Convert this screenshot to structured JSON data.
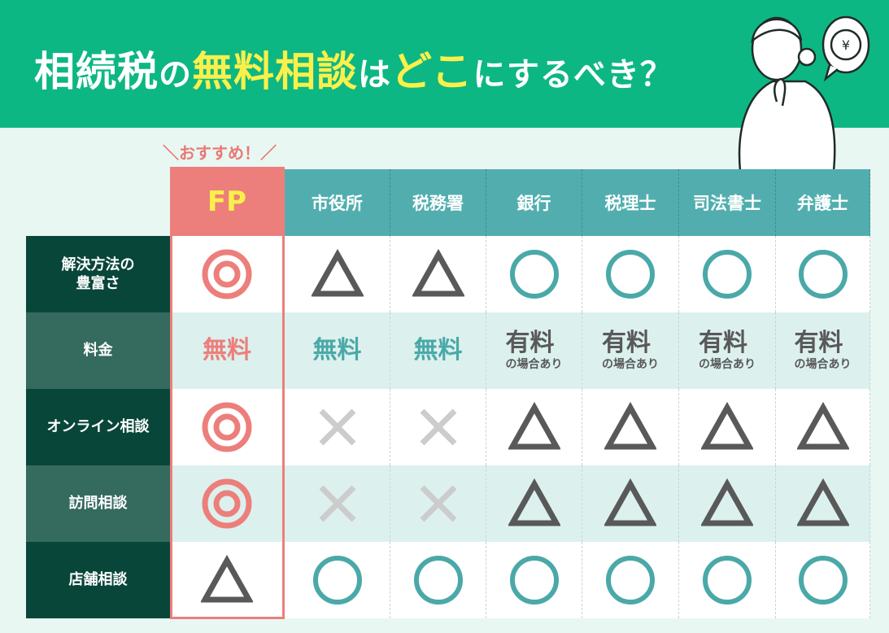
{
  "title": {
    "part1": "相続税",
    "part2": "の",
    "part3": "無料相談",
    "part4": "は",
    "part5": "どこ",
    "part6": "にするべき？"
  },
  "recommend": "＼おすすめ！／",
  "columns": [
    "FP",
    "市役所",
    "税務署",
    "銀行",
    "税理士",
    "司法書士",
    "弁護士"
  ],
  "rows": [
    {
      "label": "解決方法の\n豊富さ",
      "values": [
        "double-circle",
        "triangle",
        "triangle",
        "circle",
        "circle",
        "circle",
        "circle"
      ]
    },
    {
      "label": "料金",
      "values": [
        "無料",
        "無料",
        "無料",
        "有料",
        "有料",
        "有料",
        "有料"
      ],
      "notes": [
        "",
        "",
        "",
        "の場合あり",
        "の場合あり",
        "の場合あり",
        "の場合あり"
      ]
    },
    {
      "label": "オンライン相談",
      "values": [
        "double-circle",
        "cross",
        "cross",
        "triangle",
        "triangle",
        "triangle",
        "triangle"
      ]
    },
    {
      "label": "訪問相談",
      "values": [
        "double-circle",
        "cross",
        "cross",
        "triangle",
        "triangle",
        "triangle",
        "triangle"
      ]
    },
    {
      "label": "店舗相談",
      "values": [
        "triangle",
        "circle",
        "circle",
        "circle",
        "circle",
        "circle",
        "circle"
      ]
    }
  ],
  "colors": {
    "header": "#0db783",
    "highlight": "#fbf04a",
    "fp": "#ec7f7b",
    "teal": "#52aeae",
    "circle": "#4aa9a8",
    "triangle": "#595959",
    "cross": "#cccccc",
    "label_dark": "#08463a",
    "label_light": "#356a5e",
    "row_alt": "#dcf1ee"
  },
  "icons": {
    "person": "thinking-woman-illustration",
    "bubble": "yen-coin-speech-bubble-icon"
  }
}
